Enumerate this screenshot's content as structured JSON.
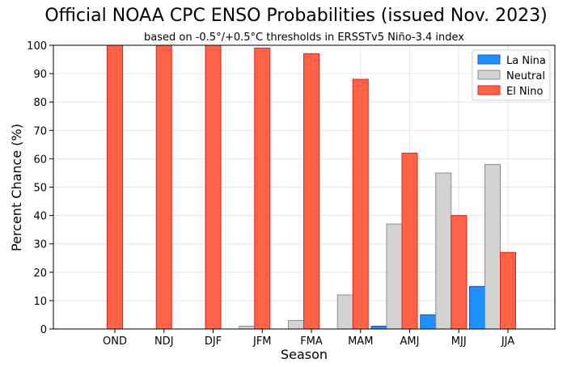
{
  "chart_data": {
    "type": "bar",
    "title": "Official NOAA CPC ENSO Probabilities (issued Nov. 2023)",
    "subtitle": "based on -0.5°/+0.5°C thresholds in ERSSTv5 Niño-3.4 index",
    "xlabel": "Season",
    "ylabel": "Percent Chance (%)",
    "ylim": [
      0,
      100
    ],
    "yticks": [
      0,
      10,
      20,
      30,
      40,
      50,
      60,
      70,
      80,
      90,
      100
    ],
    "grid": true,
    "legend_position": "top-right",
    "categories": [
      "OND",
      "NDJ",
      "DJF",
      "JFM",
      "FMA",
      "MAM",
      "AMJ",
      "MJJ",
      "JJA"
    ],
    "series": [
      {
        "name": "La Nina",
        "color": "#1e90ff",
        "edge": "#1a4fd6",
        "values": [
          0,
          0,
          0,
          0,
          0,
          0,
          1,
          5,
          15
        ]
      },
      {
        "name": "Neutral",
        "color": "#d3d3d3",
        "edge": "#8c8c8c",
        "values": [
          0,
          0,
          0,
          1,
          3,
          12,
          37,
          55,
          58
        ]
      },
      {
        "name": "El Nino",
        "color": "#ff6347",
        "edge": "#e8221a",
        "values": [
          100,
          100,
          100,
          99,
          97,
          88,
          62,
          40,
          27
        ]
      }
    ]
  }
}
